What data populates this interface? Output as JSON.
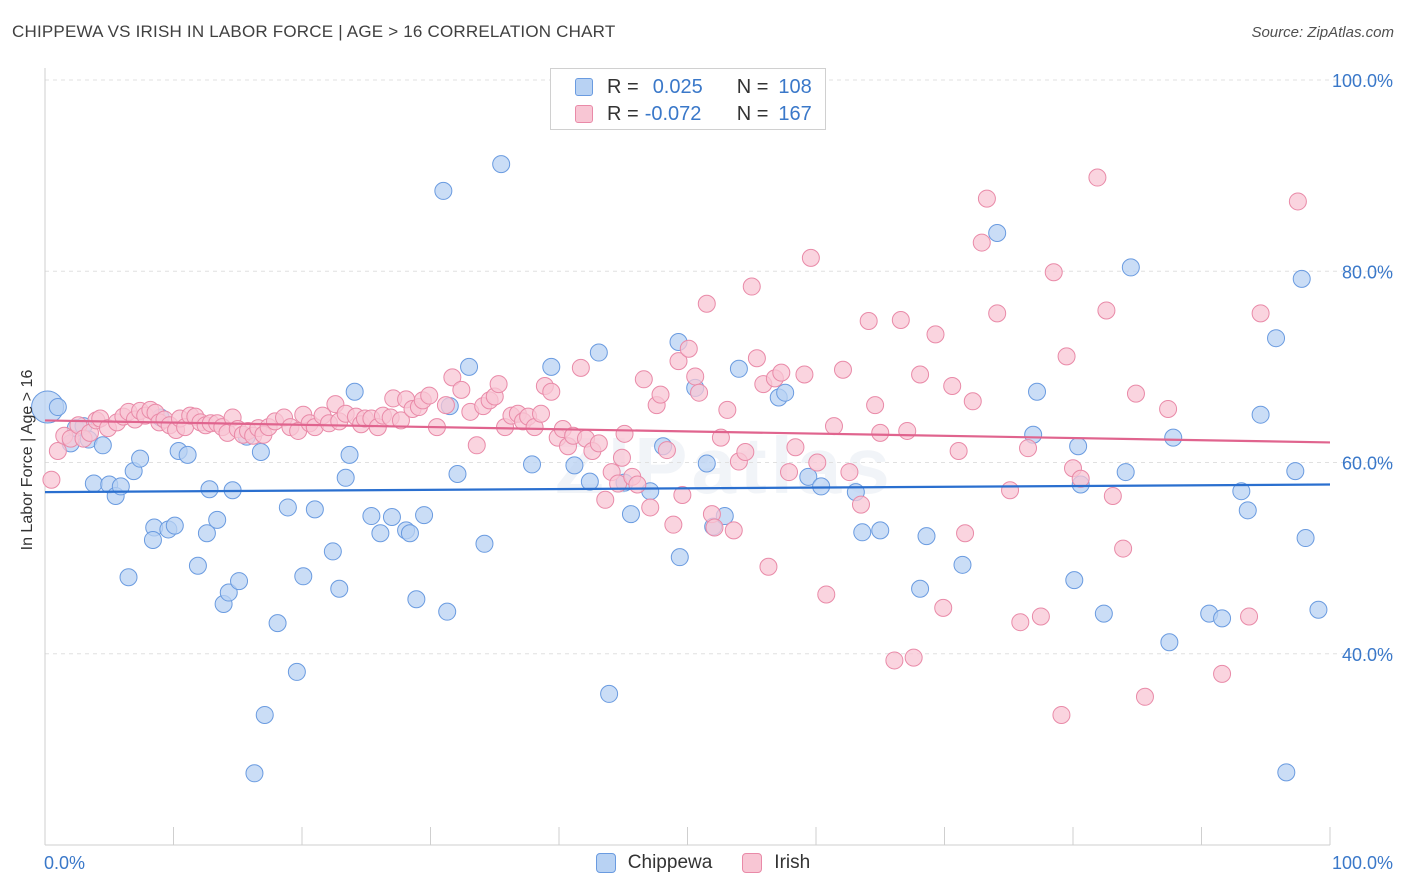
{
  "title": "CHIPPEWA VS IRISH IN LABOR FORCE | AGE > 16 CORRELATION CHART",
  "source": "Source: ZipAtlas.com",
  "watermark": "ZIPatlas",
  "legend": {
    "rows": [
      {
        "r_label": "R =",
        "r_value": "0.025",
        "n_label": "N =",
        "n_value": "108"
      },
      {
        "r_label": "R =",
        "r_value": "-0.072",
        "n_label": "N =",
        "n_value": "167"
      }
    ]
  },
  "colors": {
    "chippewa_fill": "#b8d2f3",
    "chippewa_stroke": "#6a9be0",
    "chippewa_line": "#2a6fcf",
    "irish_fill": "#f8c6d4",
    "irish_stroke": "#e98aa8",
    "irish_line": "#e0648e",
    "tick_label": "#3a78c9",
    "grid": "#e0e0e0"
  },
  "chart_data": {
    "type": "scatter",
    "xlabel": "",
    "ylabel": "In Labor Force | Age > 16",
    "xlim": [
      0,
      100
    ],
    "ylim": [
      20,
      100
    ],
    "x_tick_labels": [
      {
        "value": 0,
        "label": "0.0%"
      },
      {
        "value": 100,
        "label": "100.0%"
      }
    ],
    "y_tick_labels": [
      {
        "value": 100,
        "label": "100.0%"
      },
      {
        "value": 80,
        "label": "80.0%"
      },
      {
        "value": 60,
        "label": "60.0%"
      },
      {
        "value": 40,
        "label": "40.0%"
      }
    ],
    "grid": true,
    "legend_position": "top-center",
    "series": [
      {
        "name": "Chippewa",
        "trend": {
          "x": [
            0,
            100
          ],
          "y": [
            56.9,
            57.7
          ]
        },
        "points": [
          [
            0.2,
            65.8
          ],
          [
            1.0,
            65.8
          ],
          [
            2.0,
            62.0
          ],
          [
            2.4,
            63.6
          ],
          [
            3.0,
            63.8
          ],
          [
            3.4,
            62.4
          ],
          [
            3.8,
            57.8
          ],
          [
            4.5,
            61.8
          ],
          [
            5.0,
            57.7
          ],
          [
            5.5,
            56.5
          ],
          [
            5.9,
            57.5
          ],
          [
            6.5,
            48.0
          ],
          [
            6.9,
            59.1
          ],
          [
            7.4,
            60.4
          ],
          [
            8.5,
            53.2
          ],
          [
            8.4,
            51.9
          ],
          [
            9.6,
            53.0
          ],
          [
            10.1,
            53.4
          ],
          [
            9.0,
            64.7
          ],
          [
            10.4,
            61.2
          ],
          [
            11.1,
            60.8
          ],
          [
            11.9,
            49.2
          ],
          [
            12.6,
            52.6
          ],
          [
            12.8,
            57.2
          ],
          [
            13.4,
            54.0
          ],
          [
            13.9,
            45.2
          ],
          [
            14.3,
            46.4
          ],
          [
            14.6,
            57.1
          ],
          [
            15.1,
            47.6
          ],
          [
            15.7,
            62.7
          ],
          [
            16.3,
            27.5
          ],
          [
            16.8,
            61.1
          ],
          [
            17.1,
            33.6
          ],
          [
            18.1,
            43.2
          ],
          [
            18.9,
            55.3
          ],
          [
            19.6,
            38.1
          ],
          [
            20.1,
            48.1
          ],
          [
            21.0,
            55.1
          ],
          [
            22.4,
            50.7
          ],
          [
            22.9,
            46.8
          ],
          [
            23.4,
            58.4
          ],
          [
            23.7,
            60.8
          ],
          [
            24.1,
            67.4
          ],
          [
            25.4,
            54.4
          ],
          [
            26.1,
            52.6
          ],
          [
            27.0,
            54.3
          ],
          [
            28.1,
            52.9
          ],
          [
            28.4,
            52.6
          ],
          [
            28.9,
            45.7
          ],
          [
            29.5,
            54.5
          ],
          [
            31.0,
            88.4
          ],
          [
            31.3,
            44.4
          ],
          [
            31.5,
            65.9
          ],
          [
            32.1,
            58.8
          ],
          [
            33.0,
            70.0
          ],
          [
            34.2,
            51.5
          ],
          [
            35.5,
            91.2
          ],
          [
            37.9,
            59.8
          ],
          [
            39.4,
            70.0
          ],
          [
            41.2,
            59.7
          ],
          [
            42.4,
            58.0
          ],
          [
            43.1,
            71.5
          ],
          [
            43.9,
            35.8
          ],
          [
            45.1,
            57.9
          ],
          [
            45.6,
            54.6
          ],
          [
            47.1,
            57.0
          ],
          [
            48.1,
            61.7
          ],
          [
            49.3,
            72.6
          ],
          [
            49.4,
            50.1
          ],
          [
            50.6,
            67.8
          ],
          [
            51.5,
            59.9
          ],
          [
            52.0,
            53.3
          ],
          [
            52.9,
            54.4
          ],
          [
            54.0,
            69.8
          ],
          [
            57.1,
            66.8
          ],
          [
            57.6,
            67.3
          ],
          [
            59.4,
            58.5
          ],
          [
            60.4,
            57.5
          ],
          [
            63.1,
            56.9
          ],
          [
            63.6,
            52.7
          ],
          [
            65.0,
            52.9
          ],
          [
            68.1,
            46.8
          ],
          [
            68.6,
            52.3
          ],
          [
            71.4,
            49.3
          ],
          [
            74.1,
            84.0
          ],
          [
            76.9,
            62.9
          ],
          [
            77.2,
            67.4
          ],
          [
            80.1,
            47.7
          ],
          [
            80.4,
            61.7
          ],
          [
            80.6,
            57.7
          ],
          [
            82.4,
            44.2
          ],
          [
            84.1,
            59.0
          ],
          [
            84.5,
            80.4
          ],
          [
            87.5,
            41.2
          ],
          [
            87.8,
            62.6
          ],
          [
            90.6,
            44.2
          ],
          [
            91.6,
            43.7
          ],
          [
            93.1,
            57.0
          ],
          [
            93.6,
            55.0
          ],
          [
            94.6,
            65.0
          ],
          [
            95.8,
            73.0
          ],
          [
            96.6,
            27.6
          ],
          [
            97.3,
            59.1
          ],
          [
            97.8,
            79.2
          ],
          [
            98.1,
            52.1
          ],
          [
            99.1,
            44.6
          ]
        ]
      },
      {
        "name": "Irish",
        "trend": {
          "x": [
            0,
            100
          ],
          "y": [
            64.4,
            62.1
          ]
        },
        "points": [
          [
            0.5,
            58.2
          ],
          [
            1.0,
            61.2
          ],
          [
            1.5,
            62.8
          ],
          [
            2.0,
            62.5
          ],
          [
            2.6,
            63.9
          ],
          [
            3.0,
            62.5
          ],
          [
            3.5,
            63.1
          ],
          [
            4.0,
            64.4
          ],
          [
            4.3,
            64.6
          ],
          [
            4.9,
            63.6
          ],
          [
            5.6,
            64.2
          ],
          [
            6.1,
            64.8
          ],
          [
            6.5,
            65.3
          ],
          [
            7.0,
            64.5
          ],
          [
            7.4,
            65.4
          ],
          [
            7.8,
            64.9
          ],
          [
            8.2,
            65.5
          ],
          [
            8.6,
            65.2
          ],
          [
            8.9,
            64.2
          ],
          [
            9.3,
            64.5
          ],
          [
            9.7,
            63.9
          ],
          [
            10.2,
            63.4
          ],
          [
            10.5,
            64.6
          ],
          [
            10.9,
            63.7
          ],
          [
            11.3,
            64.9
          ],
          [
            11.7,
            64.8
          ],
          [
            12.1,
            64.2
          ],
          [
            12.5,
            63.9
          ],
          [
            12.9,
            64.1
          ],
          [
            13.4,
            64.1
          ],
          [
            13.8,
            63.7
          ],
          [
            14.2,
            63.1
          ],
          [
            14.6,
            64.7
          ],
          [
            15.0,
            63.5
          ],
          [
            15.4,
            62.9
          ],
          [
            15.8,
            63.3
          ],
          [
            16.2,
            62.8
          ],
          [
            16.6,
            63.6
          ],
          [
            17.0,
            62.9
          ],
          [
            17.4,
            63.7
          ],
          [
            17.9,
            64.3
          ],
          [
            18.6,
            64.7
          ],
          [
            19.1,
            63.7
          ],
          [
            19.7,
            63.3
          ],
          [
            20.1,
            65.0
          ],
          [
            20.6,
            64.1
          ],
          [
            21.0,
            63.7
          ],
          [
            21.6,
            64.9
          ],
          [
            22.1,
            64.1
          ],
          [
            22.6,
            66.1
          ],
          [
            22.9,
            64.3
          ],
          [
            23.4,
            65.1
          ],
          [
            24.2,
            64.8
          ],
          [
            24.6,
            64.0
          ],
          [
            24.9,
            64.6
          ],
          [
            25.4,
            64.6
          ],
          [
            25.9,
            63.7
          ],
          [
            26.3,
            64.9
          ],
          [
            26.9,
            64.7
          ],
          [
            27.1,
            66.7
          ],
          [
            27.7,
            64.4
          ],
          [
            28.1,
            66.6
          ],
          [
            28.6,
            65.6
          ],
          [
            29.1,
            65.8
          ],
          [
            29.4,
            66.5
          ],
          [
            29.9,
            67.0
          ],
          [
            30.5,
            63.7
          ],
          [
            31.2,
            66.0
          ],
          [
            31.7,
            68.9
          ],
          [
            32.4,
            67.6
          ],
          [
            33.1,
            65.3
          ],
          [
            33.6,
            61.8
          ],
          [
            34.1,
            65.9
          ],
          [
            34.6,
            66.5
          ],
          [
            35.0,
            66.9
          ],
          [
            35.3,
            68.2
          ],
          [
            35.8,
            63.7
          ],
          [
            36.3,
            64.9
          ],
          [
            36.8,
            65.1
          ],
          [
            37.2,
            64.3
          ],
          [
            37.6,
            64.8
          ],
          [
            38.1,
            63.7
          ],
          [
            38.6,
            65.1
          ],
          [
            38.9,
            68.0
          ],
          [
            39.4,
            67.4
          ],
          [
            39.9,
            62.6
          ],
          [
            40.3,
            63.5
          ],
          [
            40.7,
            61.7
          ],
          [
            41.1,
            62.8
          ],
          [
            41.7,
            69.9
          ],
          [
            42.1,
            62.5
          ],
          [
            42.6,
            61.2
          ],
          [
            43.1,
            62.0
          ],
          [
            43.6,
            56.1
          ],
          [
            44.1,
            59.0
          ],
          [
            44.6,
            57.8
          ],
          [
            44.9,
            60.5
          ],
          [
            45.1,
            63.0
          ],
          [
            45.7,
            58.5
          ],
          [
            46.1,
            57.7
          ],
          [
            46.6,
            68.7
          ],
          [
            47.1,
            55.3
          ],
          [
            47.6,
            66.0
          ],
          [
            47.9,
            67.1
          ],
          [
            48.4,
            61.3
          ],
          [
            48.9,
            53.5
          ],
          [
            49.3,
            70.6
          ],
          [
            49.6,
            56.6
          ],
          [
            50.1,
            71.9
          ],
          [
            50.6,
            69.0
          ],
          [
            50.9,
            67.3
          ],
          [
            51.5,
            76.6
          ],
          [
            51.9,
            54.6
          ],
          [
            52.1,
            53.2
          ],
          [
            52.6,
            62.6
          ],
          [
            53.1,
            65.5
          ],
          [
            53.6,
            52.9
          ],
          [
            54.0,
            60.1
          ],
          [
            54.5,
            61.1
          ],
          [
            55.0,
            78.4
          ],
          [
            55.4,
            70.9
          ],
          [
            55.9,
            68.2
          ],
          [
            56.3,
            49.1
          ],
          [
            56.8,
            68.8
          ],
          [
            57.3,
            69.4
          ],
          [
            57.9,
            59.0
          ],
          [
            58.4,
            61.6
          ],
          [
            59.1,
            69.2
          ],
          [
            59.6,
            81.4
          ],
          [
            60.1,
            60.0
          ],
          [
            60.8,
            46.2
          ],
          [
            61.4,
            63.8
          ],
          [
            62.1,
            69.7
          ],
          [
            62.6,
            59.0
          ],
          [
            63.5,
            55.6
          ],
          [
            64.1,
            74.8
          ],
          [
            64.6,
            66.0
          ],
          [
            65.0,
            63.1
          ],
          [
            66.1,
            39.3
          ],
          [
            66.6,
            74.9
          ],
          [
            67.1,
            63.3
          ],
          [
            67.6,
            39.6
          ],
          [
            68.1,
            69.2
          ],
          [
            69.3,
            73.4
          ],
          [
            69.9,
            44.8
          ],
          [
            70.6,
            68.0
          ],
          [
            71.1,
            61.2
          ],
          [
            71.6,
            52.6
          ],
          [
            72.2,
            66.4
          ],
          [
            72.9,
            83.0
          ],
          [
            73.3,
            87.6
          ],
          [
            74.1,
            75.6
          ],
          [
            75.1,
            57.1
          ],
          [
            75.9,
            43.3
          ],
          [
            76.5,
            61.5
          ],
          [
            77.5,
            43.9
          ],
          [
            78.5,
            79.9
          ],
          [
            79.1,
            33.6
          ],
          [
            79.5,
            71.1
          ],
          [
            80.0,
            59.4
          ],
          [
            80.6,
            58.3
          ],
          [
            81.9,
            89.8
          ],
          [
            82.6,
            75.9
          ],
          [
            83.1,
            56.5
          ],
          [
            83.9,
            51.0
          ],
          [
            84.9,
            67.2
          ],
          [
            85.6,
            35.5
          ],
          [
            87.4,
            65.6
          ],
          [
            91.6,
            37.9
          ],
          [
            93.7,
            43.9
          ],
          [
            94.6,
            75.6
          ],
          [
            97.5,
            87.3
          ]
        ]
      }
    ]
  },
  "bottom_legend": [
    {
      "name": "Chippewa"
    },
    {
      "name": "Irish"
    }
  ]
}
